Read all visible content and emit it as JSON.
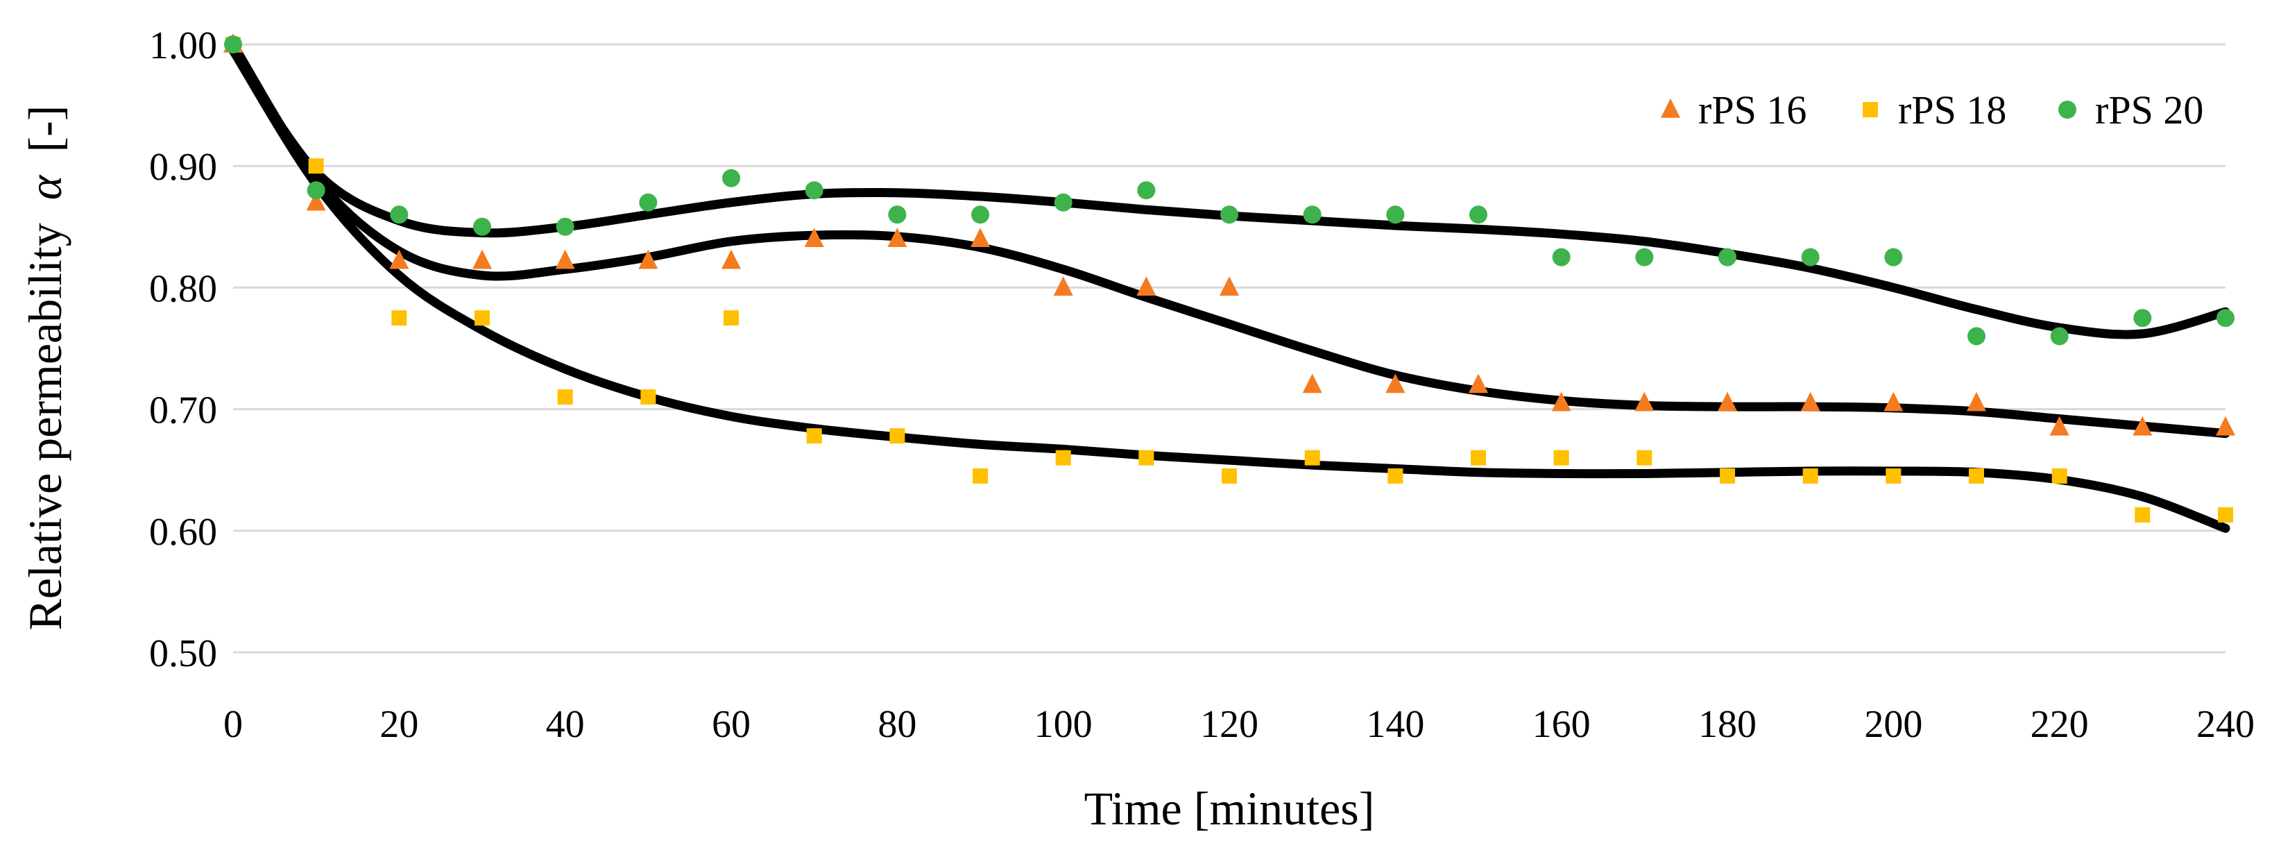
{
  "chart_data": {
    "type": "scatter",
    "title": "",
    "xlabel": "Time [minutes]",
    "ylabel_text": "Relative permeability",
    "ylabel_symbol": "α",
    "ylabel_unit": "[-]",
    "xlim": [
      0,
      240
    ],
    "ylim": [
      0.5,
      1.0
    ],
    "x_ticks": [
      "0",
      "20",
      "40",
      "60",
      "80",
      "100",
      "120",
      "140",
      "160",
      "180",
      "200",
      "220",
      "240"
    ],
    "y_ticks": [
      "0.50",
      "0.60",
      "0.70",
      "0.80",
      "0.90",
      "1.00"
    ],
    "grid": "horizontal",
    "legend_position": "top-right",
    "x": [
      0,
      10,
      20,
      30,
      40,
      50,
      60,
      70,
      80,
      90,
      100,
      110,
      120,
      130,
      140,
      150,
      160,
      170,
      180,
      190,
      200,
      210,
      220,
      230,
      240
    ],
    "series": [
      {
        "name": "rPS 16",
        "marker": "triangle",
        "color": "#F47B20",
        "values": [
          1.0,
          0.87,
          0.822,
          0.822,
          0.822,
          0.822,
          0.822,
          0.84,
          0.84,
          0.84,
          0.8,
          0.8,
          0.8,
          0.72,
          0.72,
          0.72,
          0.705,
          0.705,
          0.705,
          0.705,
          0.705,
          0.705,
          0.685,
          0.685,
          0.685
        ],
        "trend": [
          1.0,
          0.89,
          0.83,
          0.81,
          0.815,
          0.825,
          0.838,
          0.843,
          0.842,
          0.833,
          0.815,
          0.792,
          0.77,
          0.748,
          0.728,
          0.715,
          0.707,
          0.703,
          0.702,
          0.702,
          0.701,
          0.698,
          0.692,
          0.686,
          0.68
        ]
      },
      {
        "name": "rPS 18",
        "marker": "square",
        "color": "#FFC000",
        "values": [
          1.0,
          0.9,
          0.775,
          0.775,
          0.71,
          0.71,
          0.775,
          0.678,
          0.678,
          0.645,
          0.66,
          0.66,
          0.645,
          0.66,
          0.645,
          0.66,
          0.66,
          0.66,
          0.645,
          0.645,
          0.645,
          0.645,
          0.645,
          0.613,
          0.613
        ],
        "trend": [
          0.995,
          0.885,
          0.81,
          0.765,
          0.733,
          0.71,
          0.694,
          0.684,
          0.677,
          0.671,
          0.667,
          0.662,
          0.658,
          0.654,
          0.651,
          0.648,
          0.647,
          0.647,
          0.648,
          0.649,
          0.649,
          0.648,
          0.642,
          0.628,
          0.602
        ]
      },
      {
        "name": "rPS 20",
        "marker": "circle",
        "color": "#3CB44B",
        "values": [
          1.0,
          0.88,
          0.86,
          0.85,
          0.85,
          0.87,
          0.89,
          0.88,
          0.86,
          0.86,
          0.87,
          0.88,
          0.86,
          0.86,
          0.86,
          0.86,
          0.825,
          0.825,
          0.825,
          0.825,
          0.825,
          0.76,
          0.76,
          0.775,
          0.775
        ],
        "trend": [
          0.995,
          0.895,
          0.855,
          0.845,
          0.85,
          0.86,
          0.87,
          0.877,
          0.878,
          0.875,
          0.87,
          0.864,
          0.859,
          0.855,
          0.851,
          0.848,
          0.844,
          0.838,
          0.828,
          0.816,
          0.8,
          0.782,
          0.767,
          0.762,
          0.78
        ]
      }
    ]
  }
}
